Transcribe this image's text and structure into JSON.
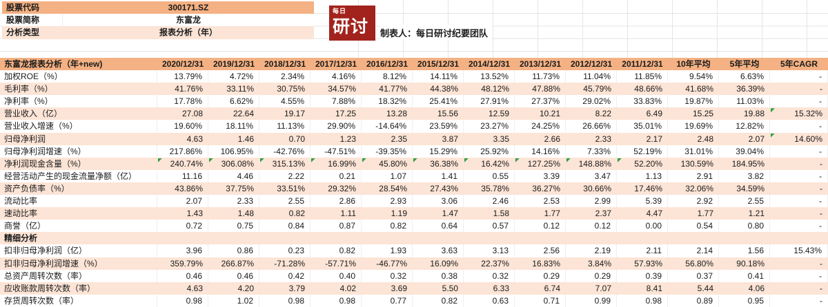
{
  "info": {
    "rows": [
      {
        "label": "股票代码",
        "value": "300171.SZ"
      },
      {
        "label": "股票简称",
        "value": "东富龙"
      },
      {
        "label": "分析类型",
        "value": "报表分析（年）"
      }
    ]
  },
  "logo": {
    "top": "每日",
    "main": "研讨"
  },
  "creator": "制表人：每日研讨纪要团队",
  "colors": {
    "accent_orange": "#F4B183",
    "row_peach": "#FCE4D6",
    "logo_red": "#A2231D",
    "flag_green": "#2F9E44"
  },
  "table": {
    "title": "东富龙报表分析（年+new)",
    "columns": [
      "2020/12/31",
      "2019/12/31",
      "2018/12/31",
      "2017/12/31",
      "2016/12/31",
      "2015/12/31",
      "2014/12/31",
      "2013/12/31",
      "2012/12/31",
      "2011/12/31",
      "10年平均",
      "5年平均",
      "5年CAGR"
    ],
    "rows": [
      {
        "label": "加权ROE（%）",
        "values": [
          "13.79%",
          "4.72%",
          "2.34%",
          "4.16%",
          "8.12%",
          "14.11%",
          "13.52%",
          "11.73%",
          "11.04%",
          "11.85%",
          "9.54%",
          "6.63%",
          "-"
        ],
        "flags": []
      },
      {
        "label": "毛利率（%）",
        "values": [
          "41.76%",
          "33.11%",
          "30.75%",
          "34.57%",
          "41.77%",
          "44.38%",
          "48.12%",
          "47.88%",
          "45.79%",
          "48.66%",
          "41.68%",
          "36.39%",
          "-"
        ],
        "flags": []
      },
      {
        "label": "净利率（%）",
        "values": [
          "17.78%",
          "6.62%",
          "4.55%",
          "7.88%",
          "18.32%",
          "25.41%",
          "27.91%",
          "27.37%",
          "29.02%",
          "33.83%",
          "19.87%",
          "11.03%",
          "-"
        ],
        "flags": []
      },
      {
        "label": "营业收入（亿）",
        "values": [
          "27.08",
          "22.64",
          "19.17",
          "17.25",
          "13.28",
          "15.56",
          "12.59",
          "10.21",
          "8.22",
          "6.49",
          "15.25",
          "19.88",
          "15.32%"
        ],
        "flags": [
          12
        ]
      },
      {
        "label": "营业收入增速（%）",
        "values": [
          "19.60%",
          "18.11%",
          "11.13%",
          "29.90%",
          "-14.64%",
          "23.59%",
          "23.27%",
          "24.25%",
          "26.66%",
          "35.01%",
          "19.69%",
          "12.82%",
          "-"
        ],
        "flags": []
      },
      {
        "label": "归母净利润",
        "values": [
          "4.63",
          "1.46",
          "0.70",
          "1.23",
          "2.35",
          "3.87",
          "3.35",
          "2.66",
          "2.33",
          "2.17",
          "2.48",
          "2.07",
          "14.60%"
        ],
        "flags": [
          12
        ]
      },
      {
        "label": "归母净利润增速（%）",
        "values": [
          "217.86%",
          "106.95%",
          "-42.76%",
          "-47.51%",
          "-39.35%",
          "15.29%",
          "25.92%",
          "14.16%",
          "7.33%",
          "52.19%",
          "31.01%",
          "39.04%",
          "-"
        ],
        "flags": []
      },
      {
        "label": "净利润现金含量（%）",
        "values": [
          "240.74%",
          "306.08%",
          "315.13%",
          "16.99%",
          "45.80%",
          "36.38%",
          "16.42%",
          "127.25%",
          "148.88%",
          "52.20%",
          "130.59%",
          "184.95%",
          "-"
        ],
        "flags": [
          0,
          1,
          2,
          3,
          4,
          5,
          6,
          7,
          8,
          9
        ]
      },
      {
        "label": "经营活动产生的现金流量净额（亿）",
        "values": [
          "11.16",
          "4.46",
          "2.22",
          "0.21",
          "1.07",
          "1.41",
          "0.55",
          "3.39",
          "3.47",
          "1.13",
          "2.91",
          "3.82",
          "-"
        ],
        "flags": []
      },
      {
        "label": "资产负债率（%）",
        "values": [
          "43.86%",
          "37.75%",
          "33.51%",
          "29.32%",
          "28.54%",
          "27.43%",
          "35.78%",
          "36.27%",
          "30.66%",
          "17.46%",
          "32.06%",
          "34.59%",
          "-"
        ],
        "flags": []
      },
      {
        "label": "流动比率",
        "values": [
          "2.07",
          "2.33",
          "2.55",
          "2.86",
          "2.93",
          "3.06",
          "2.46",
          "2.53",
          "2.99",
          "5.39",
          "2.92",
          "2.55",
          "-"
        ],
        "flags": []
      },
      {
        "label": "速动比率",
        "values": [
          "1.43",
          "1.48",
          "0.82",
          "1.11",
          "1.19",
          "1.47",
          "1.58",
          "1.77",
          "2.37",
          "4.47",
          "1.77",
          "1.21",
          "-"
        ],
        "flags": []
      },
      {
        "label": "商誉（亿）",
        "values": [
          "0.72",
          "0.75",
          "0.84",
          "0.87",
          "0.82",
          "0.64",
          "0.57",
          "0.12",
          "0.12",
          "0.00",
          "0.54",
          "0.80",
          "-"
        ],
        "flags": []
      },
      {
        "label": "精细分析",
        "values": [
          "",
          "",
          "",
          "",
          "",
          "",
          "",
          "",
          "",
          "",
          "",
          "",
          ""
        ],
        "flags": [],
        "section": true
      },
      {
        "label": "扣非归母净利润（亿）",
        "values": [
          "3.96",
          "0.86",
          "0.23",
          "0.82",
          "1.93",
          "3.63",
          "3.13",
          "2.56",
          "2.19",
          "2.11",
          "2.14",
          "1.56",
          "15.43%"
        ],
        "flags": []
      },
      {
        "label": "扣非归母净利润增速（%）",
        "values": [
          "359.79%",
          "266.87%",
          "-71.28%",
          "-57.71%",
          "-46.77%",
          "16.09%",
          "22.37%",
          "16.83%",
          "3.84%",
          "57.93%",
          "56.80%",
          "90.18%",
          "-"
        ],
        "flags": []
      },
      {
        "label": "总资产周转次数（率）",
        "values": [
          "0.46",
          "0.46",
          "0.42",
          "0.40",
          "0.32",
          "0.38",
          "0.32",
          "0.29",
          "0.29",
          "0.39",
          "0.37",
          "0.41",
          "-"
        ],
        "flags": []
      },
      {
        "label": "应收账款周转次数（率）",
        "values": [
          "4.63",
          "4.20",
          "3.79",
          "4.02",
          "3.69",
          "5.50",
          "6.33",
          "6.74",
          "7.07",
          "8.41",
          "5.44",
          "4.06",
          "-"
        ],
        "flags": []
      },
      {
        "label": "存货周转次数（率）",
        "values": [
          "0.98",
          "1.02",
          "0.98",
          "0.98",
          "0.77",
          "0.82",
          "0.63",
          "0.71",
          "0.99",
          "0.98",
          "0.89",
          "0.95",
          "-"
        ],
        "flags": []
      }
    ]
  }
}
